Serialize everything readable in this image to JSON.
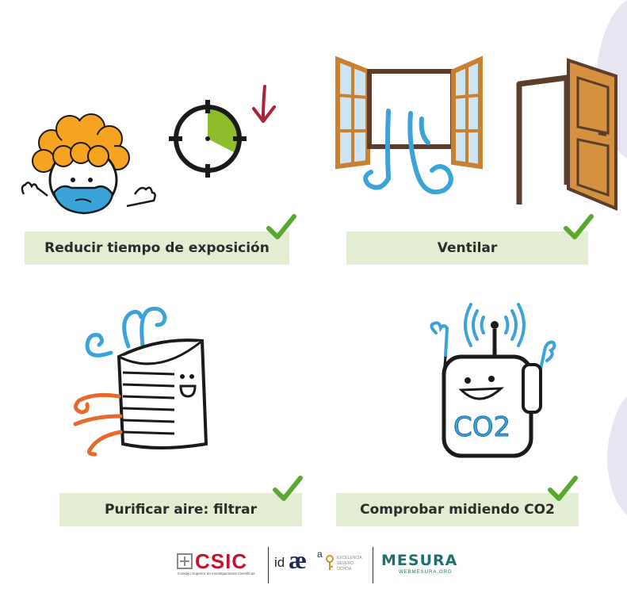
{
  "items": [
    {
      "label": "Reducir tiempo de exposición"
    },
    {
      "label": "Ventilar"
    },
    {
      "label": "Purificar aire: filtrar"
    },
    {
      "label": "Comprobar midiendo CO2"
    }
  ],
  "illustrations": {
    "co2_text": "CO2"
  },
  "logos": {
    "csic_name": "CSIC",
    "csic_sub": "Consejo Superior de Investigaciones Científicas",
    "idaea_prefix": "id",
    "idaea_mark": "æ",
    "idaea_sup": "a",
    "severo_line1": "EXCELENCIA",
    "severo_line2": "SEVERO",
    "severo_line3": "OCHOA",
    "mesura_name": "MESURA",
    "mesura_url": "WEBMESURA.ORG"
  },
  "colors": {
    "label_bg": "#e3edd2",
    "check_green": "#5aa832",
    "blue_air": "#3aa3d8",
    "orange_air": "#e66a2c",
    "hair_orange": "#f5a320",
    "clock_green": "#8dbd2a",
    "arrow_red": "#b0203a",
    "door_brown": "#c9802f",
    "mesura_teal": "#1f6f6a",
    "csic_red": "#c8102e",
    "deco_lavender": "#e8e5f3"
  }
}
